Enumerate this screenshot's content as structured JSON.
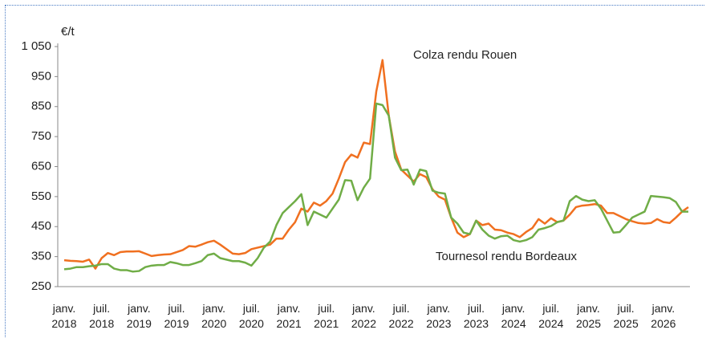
{
  "chart_data": {
    "type": "line",
    "y_label": "€/t",
    "categories": [
      "janv. 2018",
      null,
      null,
      null,
      null,
      null,
      "juil. 2018",
      null,
      null,
      null,
      null,
      null,
      "janv. 2019",
      null,
      null,
      null,
      null,
      null,
      "juil. 2019",
      null,
      null,
      null,
      null,
      null,
      "janv. 2020",
      null,
      null,
      null,
      null,
      null,
      "juil. 2020",
      null,
      null,
      null,
      null,
      null,
      "janv. 2021",
      null,
      null,
      null,
      null,
      null,
      "juil. 2021",
      null,
      null,
      null,
      null,
      null,
      "janv. 2022",
      null,
      null,
      null,
      null,
      null,
      "juil. 2022",
      null,
      null,
      null,
      null,
      null,
      "janv. 2023",
      null,
      null,
      null,
      null,
      null,
      "juil. 2023",
      null,
      null,
      null,
      null,
      null,
      "janv. 2024",
      null,
      null,
      null,
      null,
      null,
      "juil. 2024",
      null,
      null,
      null,
      null,
      null,
      "janv. 2025",
      null,
      null,
      null,
      null,
      null,
      "juil. 2025",
      null,
      null,
      null,
      null,
      null,
      "janv. 2026",
      null,
      null,
      null,
      null
    ],
    "series": [
      {
        "name": "Colza rendu Rouen",
        "color": "#f07020",
        "values": [
          338,
          336,
          335,
          333,
          340,
          310,
          345,
          362,
          355,
          365,
          367,
          367,
          368,
          360,
          352,
          355,
          357,
          358,
          365,
          372,
          385,
          383,
          390,
          398,
          403,
          390,
          375,
          360,
          358,
          362,
          375,
          380,
          385,
          390,
          410,
          410,
          440,
          465,
          510,
          500,
          530,
          520,
          535,
          560,
          610,
          665,
          690,
          680,
          730,
          725,
          900,
          1005,
          820,
          700,
          640,
          620,
          600,
          625,
          615,
          575,
          550,
          540,
          480,
          430,
          415,
          425,
          470,
          455,
          460,
          440,
          438,
          430,
          425,
          415,
          432,
          445,
          475,
          460,
          478,
          465,
          470,
          490,
          515,
          520,
          522,
          525,
          520,
          495,
          495,
          485,
          475,
          468,
          462,
          460,
          462,
          475,
          465,
          462,
          480,
          500,
          515
        ]
      },
      {
        "name": "Tournesol rendu Bordeaux",
        "color": "#70ad47",
        "values": [
          308,
          310,
          315,
          315,
          318,
          320,
          325,
          325,
          310,
          305,
          305,
          300,
          302,
          315,
          320,
          322,
          322,
          332,
          328,
          322,
          322,
          328,
          335,
          355,
          360,
          345,
          340,
          335,
          335,
          330,
          320,
          345,
          380,
          400,
          455,
          495,
          515,
          535,
          558,
          455,
          500,
          490,
          480,
          510,
          540,
          605,
          603,
          538,
          580,
          610,
          860,
          855,
          820,
          680,
          638,
          640,
          590,
          640,
          635,
          570,
          563,
          560,
          480,
          460,
          430,
          425,
          470,
          440,
          420,
          410,
          418,
          420,
          405,
          400,
          405,
          415,
          440,
          445,
          452,
          465,
          470,
          535,
          552,
          540,
          535,
          538,
          510,
          470,
          430,
          432,
          455,
          480,
          490,
          500,
          552,
          550,
          548,
          545,
          532,
          500,
          500
        ]
      }
    ],
    "ylim": [
      250,
      1050
    ],
    "yticks": [
      250,
      350,
      450,
      550,
      650,
      750,
      850,
      950,
      {
        "value": 1050,
        "label": "1 050"
      }
    ],
    "grid": false
  }
}
